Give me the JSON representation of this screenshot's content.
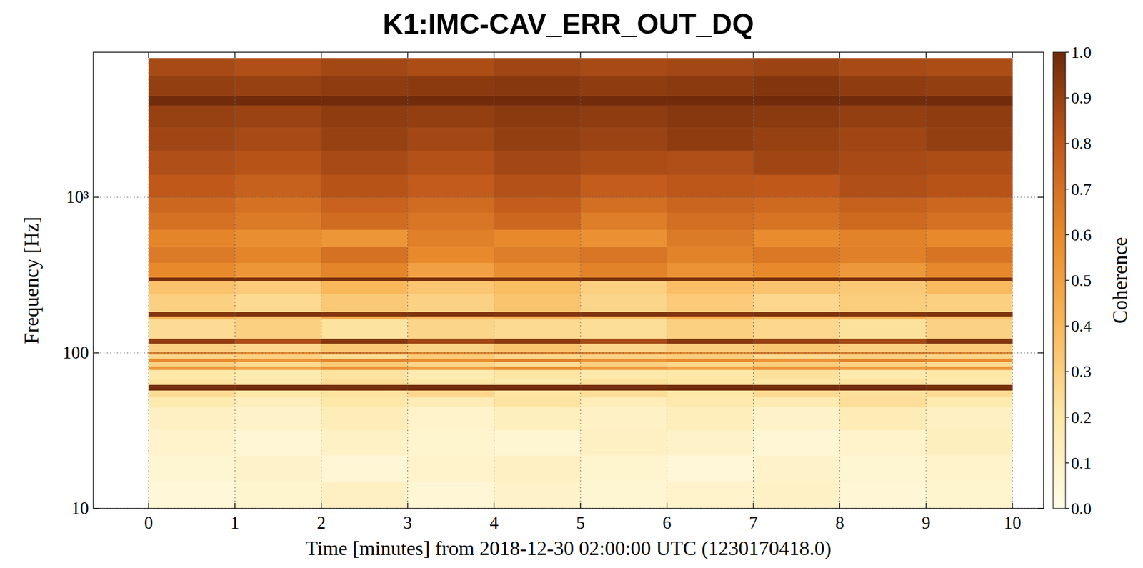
{
  "chart_data": {
    "type": "heatmap",
    "title": "K1:IMC-CAV_ERR_OUT_DQ",
    "x_label": "Time [minutes] from 2018-12-30 02:00:00 UTC (1230170418.0)",
    "y_label": "Frequency [Hz]",
    "log": "y",
    "grid": true,
    "xlim": [
      -0.64,
      10.36
    ],
    "xticks": [
      0,
      1,
      2,
      3,
      4,
      5,
      6,
      7,
      8,
      9,
      10
    ],
    "ylim": [
      10,
      8550
    ],
    "yticks": [
      10,
      100,
      {
        "value": 1000,
        "label": "10³"
      }
    ],
    "x_bins": [
      0,
      1,
      2,
      3,
      4,
      5,
      6,
      7,
      8,
      9,
      10
    ],
    "y_bins": [
      10,
      15,
      22,
      32,
      45,
      52,
      57.5,
      62.5,
      68,
      78,
      82,
      88,
      92,
      98,
      102,
      115,
      124,
      165,
      172,
      184,
      240,
      290,
      306,
      380,
      480,
      620,
      800,
      1000,
      1400,
      2000,
      2800,
      3900,
      4500,
      6000,
      7850
    ],
    "cells": [
      [
        0.05,
        0.08,
        0.12,
        0.06,
        0.1,
        0.07,
        0.09,
        0.11,
        0.06,
        0.08
      ],
      [
        0.07,
        0.1,
        0.06,
        0.09,
        0.12,
        0.08,
        0.05,
        0.1,
        0.07,
        0.09
      ],
      [
        0.09,
        0.06,
        0.11,
        0.08,
        0.07,
        0.12,
        0.1,
        0.06,
        0.09,
        0.13
      ],
      [
        0.12,
        0.1,
        0.15,
        0.09,
        0.13,
        0.11,
        0.14,
        0.1,
        0.16,
        0.12
      ],
      [
        0.18,
        0.14,
        0.2,
        0.16,
        0.22,
        0.15,
        0.19,
        0.17,
        0.24,
        0.18
      ],
      [
        0.25,
        0.2,
        0.22,
        0.27,
        0.21,
        0.24,
        0.2,
        0.26,
        0.23,
        0.25
      ],
      [
        0.98,
        0.99,
        0.98,
        0.99,
        0.99,
        0.98,
        0.99,
        0.98,
        0.99,
        0.98
      ],
      [
        0.22,
        0.19,
        0.24,
        0.2,
        0.18,
        0.23,
        0.21,
        0.2,
        0.22,
        0.19
      ],
      [
        0.2,
        0.18,
        0.22,
        0.17,
        0.21,
        0.19,
        0.2,
        0.23,
        0.18,
        0.2
      ],
      [
        0.55,
        0.5,
        0.58,
        0.52,
        0.6,
        0.54,
        0.5,
        0.57,
        0.53,
        0.56
      ],
      [
        0.3,
        0.26,
        0.32,
        0.28,
        0.25,
        0.3,
        0.27,
        0.31,
        0.29,
        0.26
      ],
      [
        0.6,
        0.55,
        0.62,
        0.58,
        0.64,
        0.57,
        0.6,
        0.56,
        0.63,
        0.59
      ],
      [
        0.28,
        0.3,
        0.25,
        0.32,
        0.27,
        0.29,
        0.31,
        0.26,
        0.3,
        0.28
      ],
      [
        0.65,
        0.6,
        0.68,
        0.62,
        0.66,
        0.63,
        0.6,
        0.67,
        0.64,
        0.62
      ],
      [
        0.3,
        0.27,
        0.33,
        0.29,
        0.35,
        0.28,
        0.31,
        0.34,
        0.3,
        0.32
      ],
      [
        0.92,
        0.85,
        0.95,
        0.88,
        0.93,
        0.86,
        0.94,
        0.9,
        0.87,
        0.95
      ],
      [
        0.25,
        0.3,
        0.22,
        0.28,
        0.26,
        0.24,
        0.3,
        0.27,
        0.23,
        0.29
      ],
      [
        0.4,
        0.35,
        0.45,
        0.38,
        0.42,
        0.37,
        0.44,
        0.39,
        0.41,
        0.36
      ],
      [
        0.95,
        0.96,
        0.95,
        0.96,
        0.95,
        0.96,
        0.95,
        0.96,
        0.95,
        0.96
      ],
      [
        0.3,
        0.26,
        0.33,
        0.29,
        0.35,
        0.28,
        0.32,
        0.27,
        0.31,
        0.3
      ],
      [
        0.36,
        0.32,
        0.4,
        0.34,
        0.38,
        0.3,
        0.37,
        0.35,
        0.33,
        0.39
      ],
      [
        0.97,
        0.96,
        0.97,
        0.97,
        0.96,
        0.97,
        0.96,
        0.97,
        0.97,
        0.96
      ],
      [
        0.6,
        0.55,
        0.62,
        0.5,
        0.58,
        0.63,
        0.56,
        0.6,
        0.54,
        0.61
      ],
      [
        0.66,
        0.62,
        0.7,
        0.6,
        0.65,
        0.68,
        0.63,
        0.67,
        0.64,
        0.69
      ],
      [
        0.62,
        0.58,
        0.55,
        0.64,
        0.6,
        0.57,
        0.66,
        0.59,
        0.63,
        0.6
      ],
      [
        0.7,
        0.66,
        0.72,
        0.68,
        0.74,
        0.65,
        0.71,
        0.69,
        0.73,
        0.7
      ],
      [
        0.74,
        0.7,
        0.76,
        0.72,
        0.78,
        0.71,
        0.75,
        0.73,
        0.77,
        0.74
      ],
      [
        0.8,
        0.77,
        0.82,
        0.79,
        0.83,
        0.78,
        0.81,
        0.8,
        0.84,
        0.82
      ],
      [
        0.84,
        0.82,
        0.86,
        0.83,
        0.87,
        0.85,
        0.84,
        0.88,
        0.86,
        0.85
      ],
      [
        0.88,
        0.86,
        0.9,
        0.87,
        0.91,
        0.89,
        0.92,
        0.9,
        0.88,
        0.91
      ],
      [
        0.9,
        0.89,
        0.92,
        0.91,
        0.93,
        0.92,
        0.94,
        0.93,
        0.91,
        0.92
      ],
      [
        0.99,
        0.99,
        0.99,
        0.99,
        0.99,
        0.99,
        0.99,
        0.99,
        0.99,
        0.99
      ],
      [
        0.91,
        0.9,
        0.92,
        0.93,
        0.94,
        0.92,
        0.93,
        0.95,
        0.92,
        0.91
      ],
      [
        0.86,
        0.84,
        0.87,
        0.85,
        0.88,
        0.86,
        0.87,
        0.89,
        0.86,
        0.85
      ]
    ],
    "colorbar": {
      "label": "Coherence",
      "range": [
        0,
        1
      ],
      "ticks": [
        {
          "value": 0,
          "label": "0.0"
        },
        0.1,
        0.2,
        0.3,
        0.4,
        0.5,
        0.6,
        0.7,
        0.8,
        0.9,
        {
          "value": 1,
          "label": "1.0"
        }
      ]
    }
  }
}
